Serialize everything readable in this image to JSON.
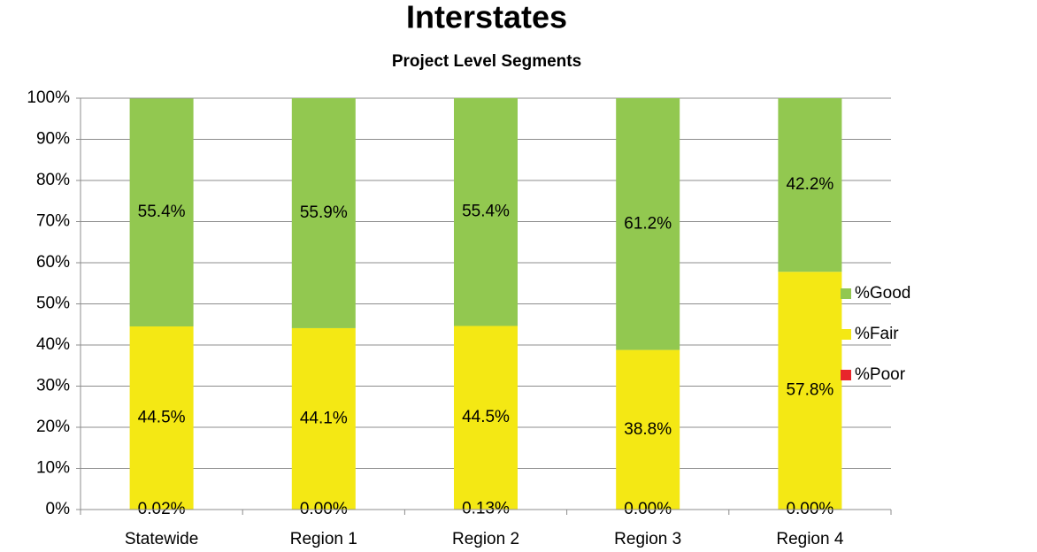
{
  "chart_data": {
    "type": "stacked_bar",
    "title": "Interstates",
    "subtitle": "Project Level Segments",
    "categories": [
      "Statewide",
      "Region 1",
      "Region 2",
      "Region 3",
      "Region 4"
    ],
    "series": [
      {
        "name": "%Poor",
        "color": "#e8262b",
        "values": [
          0.02,
          0,
          0.13,
          0,
          0
        ],
        "value_labels": [
          "0.02%",
          "0.00%",
          "0.13%",
          "0.00%",
          "0.00%"
        ]
      },
      {
        "name": "%Fair",
        "color": "#f4e814",
        "values": [
          44.5,
          44.1,
          44.5,
          38.8,
          57.8
        ],
        "value_labels": [
          "44.5%",
          "44.1%",
          "44.5%",
          "38.8%",
          "57.8%"
        ]
      },
      {
        "name": "%Good",
        "color": "#92c850",
        "values": [
          55.4,
          55.9,
          55.4,
          61.2,
          42.2
        ],
        "value_labels": [
          "55.4%",
          "55.9%",
          "55.4%",
          "61.2%",
          "42.2%"
        ]
      }
    ],
    "ylim": [
      0,
      100
    ],
    "yticks": [
      {
        "value": 0,
        "label": "0%"
      },
      {
        "value": 10,
        "label": "10%"
      },
      {
        "value": 20,
        "label": "20%"
      },
      {
        "value": 30,
        "label": "30%"
      },
      {
        "value": 40,
        "label": "40%"
      },
      {
        "value": 50,
        "label": "50%"
      },
      {
        "value": 60,
        "label": "60%"
      },
      {
        "value": 70,
        "label": "70%"
      },
      {
        "value": 80,
        "label": "80%"
      },
      {
        "value": 90,
        "label": "90%"
      },
      {
        "value": 100,
        "label": "100%"
      }
    ],
    "grid": true,
    "legend": "right"
  }
}
